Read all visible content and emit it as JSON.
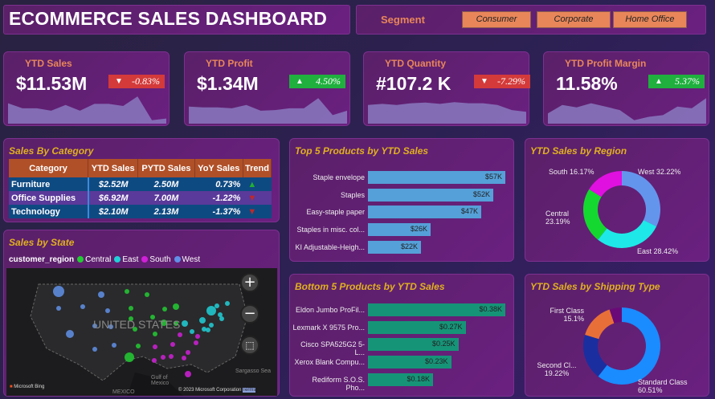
{
  "header": {
    "title": "ECOMMERCE SALES DASHBOARD",
    "segment_label": "Segment",
    "segments": [
      "Consumer",
      "Corporate",
      "Home Office"
    ],
    "segment_color": "#e8865a"
  },
  "kpis": [
    {
      "title": "YTD Sales",
      "value": "$11.53M",
      "change": "-0.83%",
      "direction": "down",
      "trend": [
        60,
        45,
        45,
        38,
        55,
        38,
        58,
        58,
        52,
        80,
        10,
        15
      ]
    },
    {
      "title": "YTD Profit",
      "value": "$1.34M",
      "change": "4.50%",
      "direction": "up",
      "trend": [
        50,
        48,
        48,
        45,
        55,
        38,
        40,
        45,
        45,
        75,
        25,
        38
      ]
    },
    {
      "title": "YTD Quantity",
      "value": "#107.2 K",
      "change": "-7.29%",
      "direction": "down",
      "trend": [
        55,
        58,
        55,
        60,
        62,
        58,
        63,
        60,
        60,
        55,
        40,
        35
      ]
    },
    {
      "title": "YTD Profit Margin",
      "value": "11.58%",
      "change": "5.37%",
      "direction": "up",
      "trend": [
        30,
        55,
        48,
        60,
        50,
        40,
        10,
        20,
        25,
        50,
        45,
        75
      ]
    }
  ],
  "category": {
    "title": "Sales By Category",
    "columns": [
      "Category",
      "YTD Sales",
      "PYTD Sales",
      "YoY Sales",
      "Trend"
    ],
    "rows": [
      {
        "category": "Furniture",
        "ytd": "$2.52M",
        "pytd": "2.50M",
        "yoy": "0.73%",
        "trend": "up"
      },
      {
        "category": "Office Supplies",
        "ytd": "$6.92M",
        "pytd": "7.00M",
        "yoy": "-1.22%",
        "trend": "down"
      },
      {
        "category": "Technology",
        "ytd": "$2.10M",
        "pytd": "2.13M",
        "yoy": "-1.37%",
        "trend": "down"
      }
    ]
  },
  "map": {
    "title": "Sales by State",
    "legend_title": "customer_region",
    "legend": [
      {
        "name": "Central",
        "color": "#22cc33"
      },
      {
        "name": "East",
        "color": "#20d0d8"
      },
      {
        "name": "South",
        "color": "#d020d8"
      },
      {
        "name": "West",
        "color": "#6090e8"
      }
    ],
    "country_label": "UNITED STATES",
    "gulf_label": "Gulf of Mexico",
    "mexico_label": "MEXICO",
    "sea_label": "Sargasso Sea",
    "bing": "Microsoft Bing",
    "copyright": "© 2023 Microsoft Corporation",
    "terms": "Terms"
  },
  "top5": {
    "title": "Top 5 Products by YTD Sales",
    "color": "#55a0d8",
    "items": [
      {
        "name": "Staple envelope",
        "value": 57,
        "label": "$57K"
      },
      {
        "name": "Staples",
        "value": 52,
        "label": "$52K"
      },
      {
        "name": "Easy-staple paper",
        "value": 47,
        "label": "$47K"
      },
      {
        "name": "Staples in misc. col...",
        "value": 26,
        "label": "$26K"
      },
      {
        "name": "KI Adjustable-Heigh...",
        "value": 22,
        "label": "$22K"
      }
    ]
  },
  "bottom5": {
    "title": "Bottom 5 Products by YTD Sales",
    "color": "#169478",
    "items": [
      {
        "name": "Eldon Jumbo ProFil...",
        "value": 0.38,
        "label": "$0.38K"
      },
      {
        "name": "Lexmark X 9575 Pro...",
        "value": 0.27,
        "label": "$0.27K"
      },
      {
        "name": "Cisco SPA525G2 5-L...",
        "value": 0.25,
        "label": "$0.25K"
      },
      {
        "name": "Xerox Blank Compu...",
        "value": 0.23,
        "label": "$0.23K"
      },
      {
        "name": "Rediform S.O.S. Pho...",
        "value": 0.18,
        "label": "$0.18K"
      }
    ]
  },
  "region": {
    "title": "YTD Sales by Region",
    "slices": [
      {
        "name": "West",
        "value": 32.22,
        "label": "West 32.22%",
        "color": "#6495ed"
      },
      {
        "name": "East",
        "value": 28.42,
        "label": "East 28.42%",
        "color": "#1ee8e8"
      },
      {
        "name": "Central",
        "value": 23.19,
        "label": "Central 23.19%",
        "color": "#14d830"
      },
      {
        "name": "South",
        "value": 16.17,
        "label": "South 16.17%",
        "color": "#e010e0"
      }
    ]
  },
  "shipping": {
    "title": "YTD Sales by Shipping Type",
    "slices": [
      {
        "name": "Standard Class",
        "value": 60.51,
        "label": "Standard Class 60.51%",
        "color": "#1a8cff"
      },
      {
        "name": "Second Cl...",
        "value": 19.22,
        "label": "Second Cl... 19.22%",
        "color": "#1a2ea0"
      },
      {
        "name": "First Class",
        "value": 15.1,
        "label": "First Class 15.1%",
        "color": "#e87038"
      },
      {
        "name": "",
        "value": 5.17,
        "label": "",
        "color": "#6a0a78"
      }
    ]
  }
}
